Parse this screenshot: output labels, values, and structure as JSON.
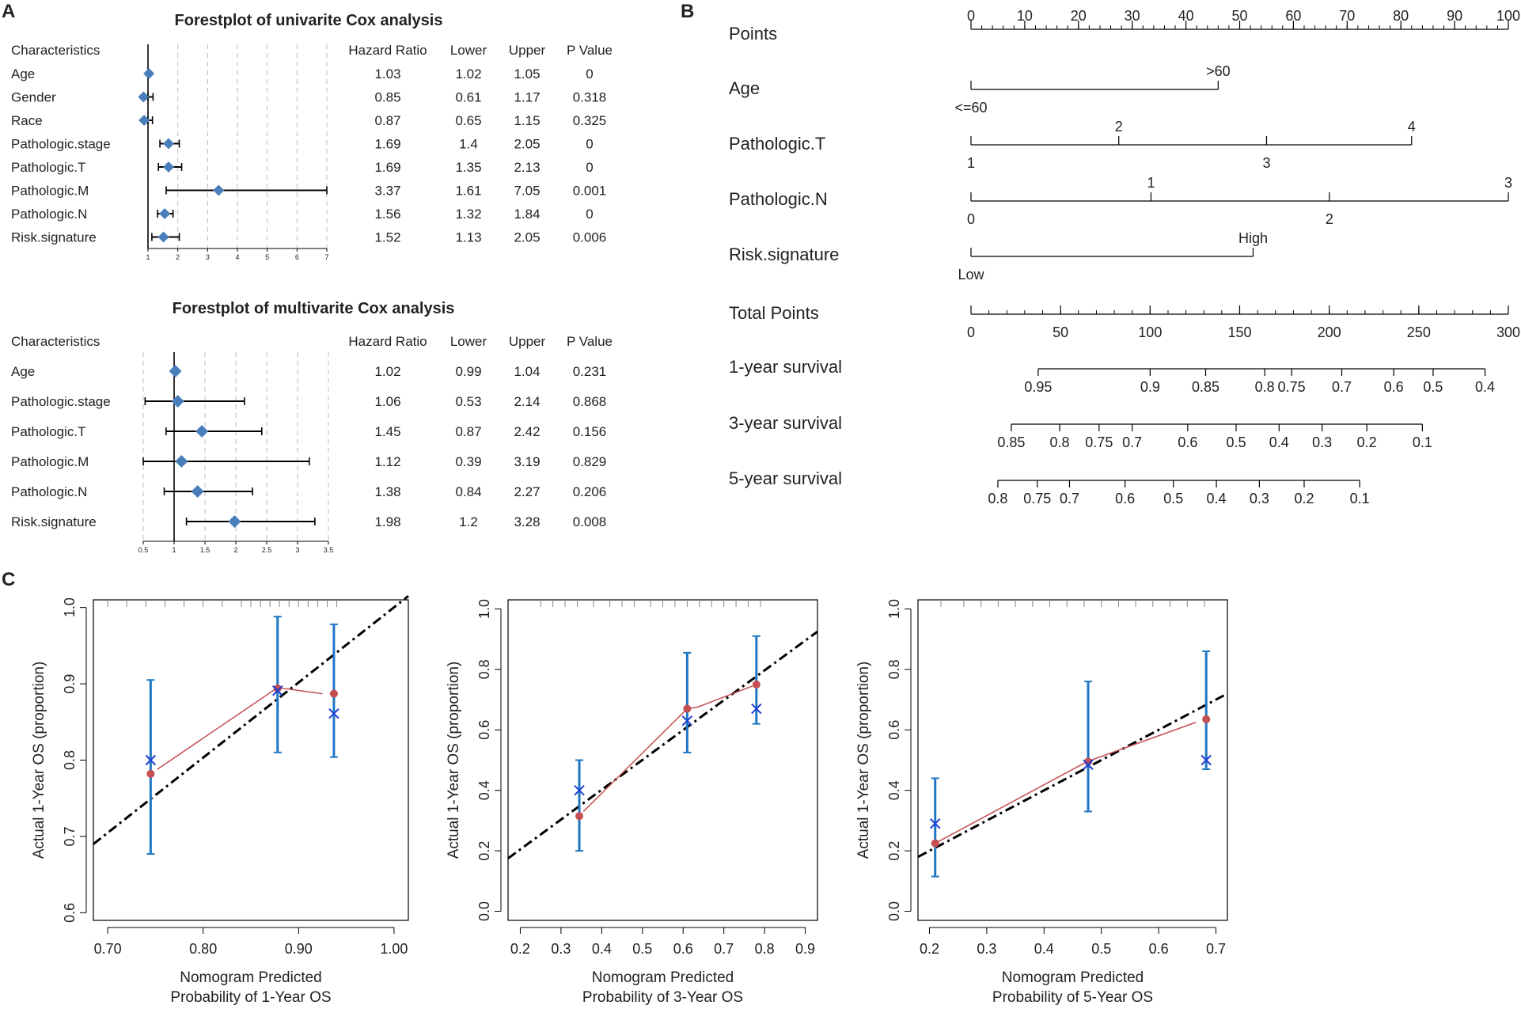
{
  "panel_labels": {
    "a": "A",
    "b": "B",
    "c": "C"
  },
  "colors": {
    "diamond": "#4a7ebb",
    "errbar": "#1f77c4",
    "observed": "#c44e52",
    "ideal": "#000000",
    "cross": "#1f3fd6",
    "grid": "#bbbbbb"
  },
  "chart_data": [
    {
      "type": "forest",
      "title": "Forestplot of univarite Cox analysis",
      "headers": [
        "Characteristics",
        "Hazard Ratio",
        "Lower",
        "Upper",
        "P Value"
      ],
      "rows": [
        {
          "label": "Age",
          "hr": "1.03",
          "lower": "1.02",
          "upper": "1.05",
          "p": "0"
        },
        {
          "label": "Gender",
          "hr": "0.85",
          "lower": "0.61",
          "upper": "1.17",
          "p": "0.318"
        },
        {
          "label": "Race",
          "hr": "0.87",
          "lower": "0.65",
          "upper": "1.15",
          "p": "0.325"
        },
        {
          "label": "Pathologic.stage",
          "hr": "1.69",
          "lower": "1.4",
          "upper": "2.05",
          "p": "0"
        },
        {
          "label": "Pathologic.T",
          "hr": "1.69",
          "lower": "1.35",
          "upper": "2.13",
          "p": "0"
        },
        {
          "label": "Pathologic.M",
          "hr": "3.37",
          "lower": "1.61",
          "upper": "7.05",
          "p": "0.001"
        },
        {
          "label": "Pathologic.N",
          "hr": "1.56",
          "lower": "1.32",
          "upper": "1.84",
          "p": "0"
        },
        {
          "label": "Risk.signature",
          "hr": "1.52",
          "lower": "1.13",
          "upper": "2.05",
          "p": "0.006"
        }
      ],
      "xlim": [
        1,
        7
      ],
      "ticks": [
        "1",
        "2",
        "3",
        "4",
        "5",
        "6",
        "7"
      ]
    },
    {
      "type": "forest",
      "title": "Forestplot of multivarite Cox analysis",
      "headers": [
        "Characteristics",
        "Hazard Ratio",
        "Lower",
        "Upper",
        "P Value"
      ],
      "rows": [
        {
          "label": "Age",
          "hr": "1.02",
          "lower": "0.99",
          "upper": "1.04",
          "p": "0.231"
        },
        {
          "label": "Pathologic.stage",
          "hr": "1.06",
          "lower": "0.53",
          "upper": "2.14",
          "p": "0.868"
        },
        {
          "label": "Pathologic.T",
          "hr": "1.45",
          "lower": "0.87",
          "upper": "2.42",
          "p": "0.156"
        },
        {
          "label": "Pathologic.M",
          "hr": "1.12",
          "lower": "0.39",
          "upper": "3.19",
          "p": "0.829"
        },
        {
          "label": "Pathologic.N",
          "hr": "1.38",
          "lower": "0.84",
          "upper": "2.27",
          "p": "0.206"
        },
        {
          "label": "Risk.signature",
          "hr": "1.98",
          "lower": "1.2",
          "upper": "3.28",
          "p": "0.008"
        }
      ],
      "xlim": [
        0.5,
        3.5
      ],
      "ticks": [
        "0.5",
        "1",
        "1.5",
        "2",
        "2.5",
        "3",
        "3.5"
      ]
    },
    {
      "type": "nomogram",
      "scales": [
        {
          "label": "Points",
          "kind": "axis",
          "ticks": [
            {
              "v": 0,
              "t": "0"
            },
            {
              "v": 10,
              "t": "10"
            },
            {
              "v": 20,
              "t": "20"
            },
            {
              "v": 30,
              "t": "30"
            },
            {
              "v": 40,
              "t": "40"
            },
            {
              "v": 50,
              "t": "50"
            },
            {
              "v": 60,
              "t": "60"
            },
            {
              "v": 70,
              "t": "70"
            },
            {
              "v": 80,
              "t": "80"
            },
            {
              "v": 90,
              "t": "90"
            },
            {
              "v": 100,
              "t": "100"
            }
          ]
        },
        {
          "label": "Age",
          "kind": "seg",
          "max": 46,
          "ticks": [
            {
              "v": 0,
              "t": "<=60",
              "side": "below"
            },
            {
              "v": 46,
              "t": ">60",
              "side": "above"
            }
          ]
        },
        {
          "label": "Pathologic.T",
          "kind": "seg",
          "max": 82,
          "ticks": [
            {
              "v": 0,
              "t": "1",
              "side": "below"
            },
            {
              "v": 27.5,
              "t": "2",
              "side": "above"
            },
            {
              "v": 55,
              "t": "3",
              "side": "below"
            },
            {
              "v": 82,
              "t": "4",
              "side": "above"
            }
          ]
        },
        {
          "label": "Pathologic.N",
          "kind": "seg",
          "max": 100,
          "ticks": [
            {
              "v": 0,
              "t": "0",
              "side": "below"
            },
            {
              "v": 33.5,
              "t": "1",
              "side": "above"
            },
            {
              "v": 66.7,
              "t": "2",
              "side": "below"
            },
            {
              "v": 100,
              "t": "3",
              "side": "above"
            }
          ]
        },
        {
          "label": "Risk.signature",
          "kind": "seg",
          "max": 52.5,
          "ticks": [
            {
              "v": 0,
              "t": "Low",
              "side": "below"
            },
            {
              "v": 52.5,
              "t": "High",
              "side": "above"
            }
          ]
        },
        {
          "label": "Total Points",
          "kind": "axis",
          "max": 300,
          "ticks": [
            {
              "v": 0,
              "t": "0"
            },
            {
              "v": 50,
              "t": "50"
            },
            {
              "v": 100,
              "t": "100"
            },
            {
              "v": 150,
              "t": "150"
            },
            {
              "v": 200,
              "t": "200"
            },
            {
              "v": 250,
              "t": "250"
            },
            {
              "v": 300,
              "t": "300"
            }
          ]
        },
        {
          "label": "1-year survival",
          "kind": "surv",
          "ticks": [
            {
              "v": 37.5,
              "t": "0.95"
            },
            {
              "v": 100,
              "t": "0.9"
            },
            {
              "v": 131,
              "t": "0.85"
            },
            {
              "v": 164,
              "t": "0.8"
            },
            {
              "v": 179,
              "t": "0.75"
            },
            {
              "v": 207,
              "t": "0.7"
            },
            {
              "v": 236,
              "t": "0.6"
            },
            {
              "v": 258,
              "t": "0.5"
            },
            {
              "v": 287,
              "t": "0.4"
            }
          ]
        },
        {
          "label": "3-year survival",
          "kind": "surv",
          "ticks": [
            {
              "v": 22.5,
              "t": "0.85"
            },
            {
              "v": 49.5,
              "t": "0.8"
            },
            {
              "v": 71.5,
              "t": "0.75"
            },
            {
              "v": 90,
              "t": "0.7"
            },
            {
              "v": 121,
              "t": "0.6"
            },
            {
              "v": 148,
              "t": "0.5"
            },
            {
              "v": 172,
              "t": "0.4"
            },
            {
              "v": 196,
              "t": "0.3"
            },
            {
              "v": 221,
              "t": "0.2"
            },
            {
              "v": 252,
              "t": "0.1"
            }
          ]
        },
        {
          "label": "5-year survival",
          "kind": "surv",
          "ticks": [
            {
              "v": 15,
              "t": "0.8"
            },
            {
              "v": 37,
              "t": "0.75"
            },
            {
              "v": 55,
              "t": "0.7"
            },
            {
              "v": 86,
              "t": "0.6"
            },
            {
              "v": 113,
              "t": "0.5"
            },
            {
              "v": 137,
              "t": "0.4"
            },
            {
              "v": 161,
              "t": "0.3"
            },
            {
              "v": 186,
              "t": "0.2"
            },
            {
              "v": 217,
              "t": "0.1"
            }
          ]
        }
      ]
    },
    {
      "type": "calibration",
      "xlabel": [
        "Nomogram Predicted",
        "Probability of 1-Year OS"
      ],
      "ylabel": "Actual 1-Year OS (proportion)",
      "xlim": [
        0.685,
        1.015
      ],
      "ylim": [
        0.59,
        1.01
      ],
      "xticks": [
        0.7,
        0.8,
        0.9,
        1.0
      ],
      "xtick_labels": [
        "0.70",
        "0.80",
        "0.90",
        "1.00"
      ],
      "yticks": [
        0.6,
        0.7,
        0.8,
        0.9,
        1.0
      ],
      "ytick_labels": [
        "0.6",
        "0.7",
        "0.8",
        "0.9",
        "1.0"
      ],
      "ideal": [
        [
          0.685,
          0.69
        ],
        [
          1.015,
          1.015
        ]
      ],
      "observed_line": [
        [
          0.752,
          0.788
        ],
        [
          0.878,
          0.895
        ],
        [
          0.925,
          0.887
        ]
      ],
      "points": [
        {
          "x": 0.745,
          "obs": 0.782,
          "cross": 0.8,
          "lo": 0.677,
          "hi": 0.905
        },
        {
          "x": 0.878,
          "obs": 0.894,
          "cross": 0.891,
          "lo": 0.81,
          "hi": 0.988
        },
        {
          "x": 0.937,
          "obs": 0.887,
          "cross": 0.861,
          "lo": 0.804,
          "hi": 0.978
        }
      ],
      "rug": [
        0.7,
        0.72,
        0.74,
        0.76,
        0.78,
        0.8,
        0.82,
        0.84,
        0.85,
        0.86,
        0.87,
        0.88,
        0.89,
        0.9,
        0.91,
        0.92,
        0.93,
        0.94
      ]
    },
    {
      "type": "calibration",
      "xlabel": [
        "Nomogram Predicted",
        "Probability of 3-Year OS"
      ],
      "ylabel": "Actual 1-Year OS (proportion)",
      "xlim": [
        0.17,
        0.93
      ],
      "ylim": [
        -0.03,
        1.03
      ],
      "xticks": [
        0.2,
        0.3,
        0.4,
        0.5,
        0.6,
        0.7,
        0.8,
        0.9
      ],
      "xtick_labels": [
        "0.2",
        "0.3",
        "0.4",
        "0.5",
        "0.6",
        "0.7",
        "0.8",
        "0.9"
      ],
      "yticks": [
        0.0,
        0.2,
        0.4,
        0.6,
        0.8,
        1.0
      ],
      "ytick_labels": [
        "0.0",
        "0.2",
        "0.4",
        "0.6",
        "0.8",
        "1.0"
      ],
      "ideal": [
        [
          0.17,
          0.175
        ],
        [
          0.93,
          0.925
        ]
      ],
      "observed_line": [
        [
          0.355,
          0.33
        ],
        [
          0.61,
          0.67
        ],
        [
          0.635,
          0.675
        ],
        [
          0.77,
          0.745
        ]
      ],
      "points": [
        {
          "x": 0.345,
          "obs": 0.315,
          "cross": 0.4,
          "lo": 0.2,
          "hi": 0.5
        },
        {
          "x": 0.61,
          "obs": 0.67,
          "cross": 0.63,
          "lo": 0.525,
          "hi": 0.855
        },
        {
          "x": 0.78,
          "obs": 0.75,
          "cross": 0.67,
          "lo": 0.62,
          "hi": 0.91
        }
      ],
      "rug": [
        0.25,
        0.28,
        0.31,
        0.34,
        0.38,
        0.42,
        0.45,
        0.48,
        0.52,
        0.55,
        0.58,
        0.61,
        0.64,
        0.67,
        0.7,
        0.73,
        0.76,
        0.79
      ]
    },
    {
      "type": "calibration",
      "xlabel": [
        "Nomogram Predicted",
        "Probability of 5-Year OS"
      ],
      "ylabel": "Actual 1-Year OS (proportion)",
      "xlim": [
        0.18,
        0.72
      ],
      "ylim": [
        -0.03,
        1.03
      ],
      "xticks": [
        0.2,
        0.3,
        0.4,
        0.5,
        0.6,
        0.7
      ],
      "xtick_labels": [
        "0.2",
        "0.3",
        "0.4",
        "0.5",
        "0.6",
        "0.7"
      ],
      "yticks": [
        0.0,
        0.2,
        0.4,
        0.6,
        0.8,
        1.0
      ],
      "ytick_labels": [
        "0.0",
        "0.2",
        "0.4",
        "0.6",
        "0.8",
        "1.0"
      ],
      "ideal": [
        [
          0.18,
          0.18
        ],
        [
          0.72,
          0.72
        ]
      ],
      "observed_line": [
        [
          0.215,
          0.23
        ],
        [
          0.475,
          0.495
        ],
        [
          0.665,
          0.625
        ]
      ],
      "points": [
        {
          "x": 0.21,
          "obs": 0.225,
          "cross": 0.29,
          "lo": 0.115,
          "hi": 0.44
        },
        {
          "x": 0.477,
          "obs": 0.495,
          "cross": 0.485,
          "lo": 0.33,
          "hi": 0.76
        },
        {
          "x": 0.683,
          "obs": 0.635,
          "cross": 0.5,
          "lo": 0.47,
          "hi": 0.86
        }
      ],
      "rug": [
        0.22,
        0.26,
        0.29,
        0.32,
        0.35,
        0.38,
        0.41,
        0.44,
        0.47,
        0.5,
        0.53,
        0.56,
        0.59,
        0.62,
        0.65,
        0.68
      ]
    }
  ]
}
